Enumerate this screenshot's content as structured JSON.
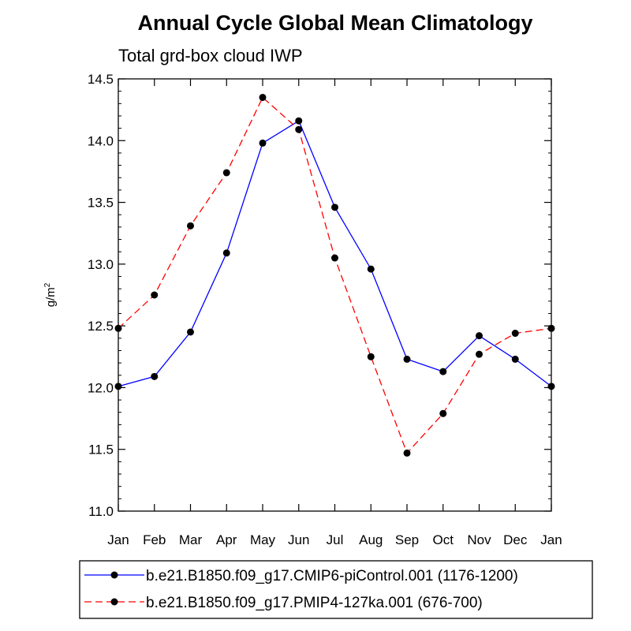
{
  "chart_data": {
    "type": "line",
    "title": "Annual Cycle Global Mean Climatology",
    "subtitle": "Total grd-box cloud IWP",
    "xlabel": "",
    "ylabel": "g/m",
    "ylabel_superscript": "2",
    "categories": [
      "Jan",
      "Feb",
      "Mar",
      "Apr",
      "May",
      "Jun",
      "Jul",
      "Aug",
      "Sep",
      "Oct",
      "Nov",
      "Dec",
      "Jan"
    ],
    "ylim": [
      11.0,
      14.5
    ],
    "yticks": [
      "11.0",
      "11.5",
      "12.0",
      "12.5",
      "13.0",
      "13.5",
      "14.0",
      "14.5"
    ],
    "grid": false,
    "legend_position": "bottom",
    "series": [
      {
        "name": "b.e21.B1850.f09_g17.CMIP6-piControl.001 (1176-1200)",
        "color": "#0000ff",
        "dash": "solid",
        "values": [
          12.01,
          12.09,
          12.45,
          13.09,
          13.98,
          14.16,
          13.46,
          12.96,
          12.23,
          12.13,
          12.42,
          12.23,
          12.01
        ]
      },
      {
        "name": "b.e21.B1850.f09_g17.PMIP4-127ka.001 (676-700)",
        "color": "#ff0000",
        "dash": "dashed",
        "values": [
          12.48,
          12.75,
          13.31,
          13.74,
          14.35,
          14.09,
          13.05,
          12.25,
          11.47,
          11.79,
          12.27,
          12.44,
          12.48
        ]
      }
    ]
  }
}
